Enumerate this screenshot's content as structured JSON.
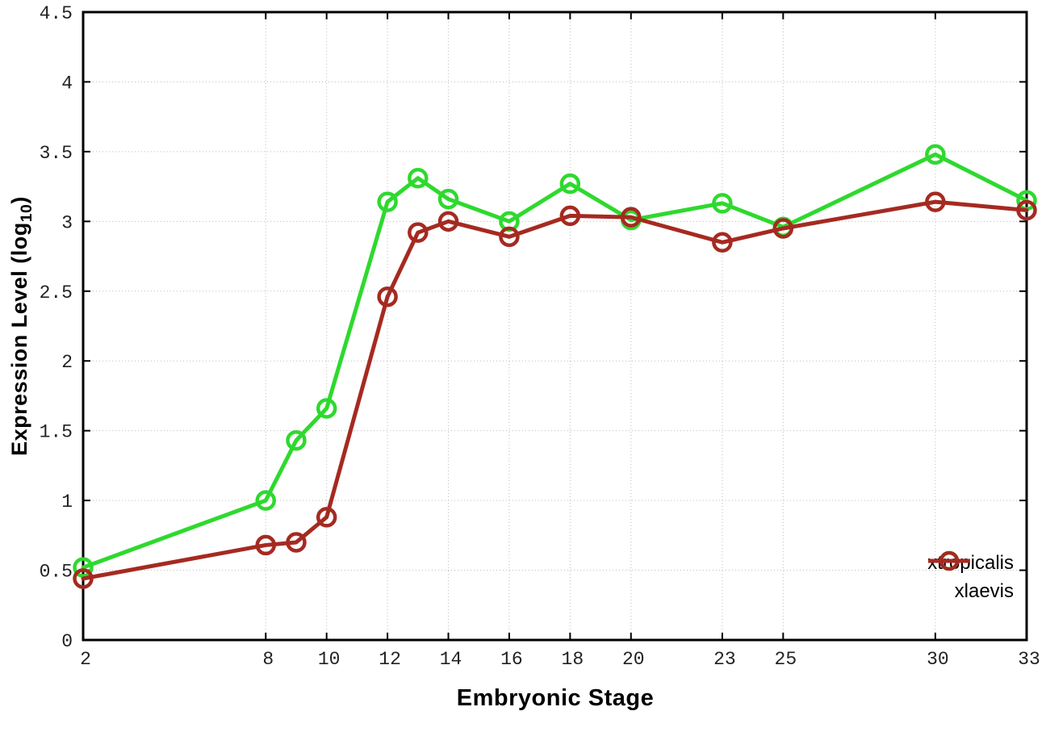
{
  "chart_data": {
    "type": "line",
    "title": "",
    "xlabel": "Embryonic Stage",
    "ylabel": "Expression Level (log10)",
    "ylabel_prefix": "Expression Level (log",
    "ylabel_sub": "10",
    "ylabel_suffix": ")",
    "x": [
      2,
      8,
      9,
      10,
      12,
      13,
      14,
      16,
      18,
      20,
      23,
      25,
      30,
      33
    ],
    "series": [
      {
        "name": "xtropicalis",
        "color": "#2ED92E",
        "values": [
          0.52,
          1.0,
          1.43,
          1.66,
          3.14,
          3.31,
          3.16,
          3.0,
          3.27,
          3.01,
          3.13,
          2.96,
          3.48,
          3.15
        ]
      },
      {
        "name": "xlaevis",
        "color": "#A52A21",
        "values": [
          0.44,
          0.68,
          0.7,
          0.88,
          2.46,
          2.92,
          3.0,
          2.89,
          3.04,
          3.03,
          2.85,
          2.95,
          3.14,
          3.08
        ]
      }
    ],
    "xlim": [
      2,
      33
    ],
    "ylim": [
      0,
      4.5
    ],
    "xticks": [
      2,
      8,
      10,
      12,
      14,
      16,
      18,
      20,
      23,
      25,
      30,
      33
    ],
    "yticks": [
      0,
      0.5,
      1,
      1.5,
      2,
      2.5,
      3,
      3.5,
      4,
      4.5
    ],
    "grid": true,
    "grid_style": "dotted",
    "legend_position": "inside-bottom-right",
    "frame_color": "#000000",
    "grid_color": "#bdbdbd",
    "marker": "open-circle"
  }
}
